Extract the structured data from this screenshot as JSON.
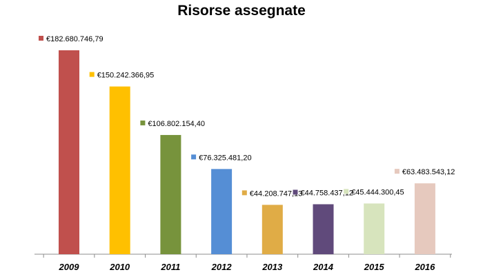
{
  "chart_data": {
    "type": "bar",
    "title": "Risorse assegnate",
    "xlabel": "",
    "ylabel": "",
    "grid": false,
    "legend": "none",
    "categories": [
      "2009",
      "2010",
      "2011",
      "2012",
      "2013",
      "2014",
      "2015",
      "2016"
    ],
    "values": [
      182680746.79,
      150242366.95,
      106802154.4,
      76325481.2,
      44208747.13,
      44758437.12,
      45444300.45,
      63483543.12
    ],
    "data_labels": [
      "€182.680.746,79",
      "€150.242.366,95",
      "€106.802.154,40",
      "€76.325.481,20",
      "€44.208.747,13",
      "€44.758.437,12",
      "€45.444.300,45",
      "€63.483.543,12"
    ],
    "colors": [
      "#C0504D",
      "#FFC000",
      "#77933C",
      "#558ED5",
      "#E0AC46",
      "#604A7B",
      "#D7E4BD",
      "#E6C9BE"
    ],
    "ylim": [
      0,
      200000000
    ]
  }
}
